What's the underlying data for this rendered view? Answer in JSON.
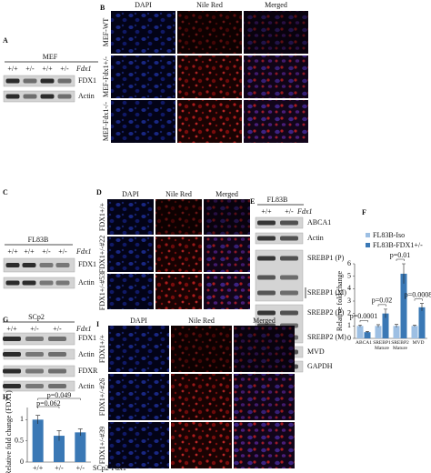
{
  "panels": {
    "A": {
      "label": "A",
      "cell_line": "MEF",
      "genotypes": [
        "+/+",
        "+/-",
        "+/+",
        "+/-"
      ],
      "gene": "Fdx1",
      "blots": [
        "FDX1",
        "Actin"
      ]
    },
    "B": {
      "label": "B",
      "columns": [
        "DAPI",
        "Nile Red",
        "Merged"
      ],
      "rows": [
        "MEF-WT",
        "MEF-Fdx1+/-",
        "MEF-Fdx1-/-"
      ]
    },
    "C": {
      "label": "C",
      "cell_line": "FL83B",
      "genotypes": [
        "+/+",
        "+/+",
        "+/-",
        "+/-"
      ],
      "gene": "Fdx1",
      "blots": [
        "FDX1",
        "Actin"
      ]
    },
    "D": {
      "label": "D",
      "columns": [
        "DAPI",
        "Nile Red",
        "Merged"
      ],
      "rows": [
        "FDX1+/+",
        "FDX1+/-#22",
        "FDX1+/-#53"
      ]
    },
    "E": {
      "label": "E",
      "cell_line": "FL83B",
      "genotypes": [
        "+/+",
        "+/-"
      ],
      "gene": "Fdx1",
      "blots": [
        "ABCA1",
        "Actin",
        "SREBP1 (P)",
        "SREBP1 (M)",
        "SREBP2 (P)",
        "SREBP2 (M)",
        "MVD",
        "GAPDH"
      ]
    },
    "F": {
      "label": "F"
    },
    "G": {
      "label": "G",
      "cell_line": "SCp2",
      "genotypes": [
        "+/+",
        "+/-",
        "+/-"
      ],
      "gene": "Fdx1",
      "blots": [
        "FDX1",
        "Actin",
        "FDXR",
        "Actin"
      ]
    },
    "H": {
      "label": "H"
    },
    "I": {
      "label": "I",
      "columns": [
        "DAPI",
        "Nile Red",
        "Merged"
      ],
      "rows": [
        "FDX1+/+",
        "FDX1+/-#26",
        "FDX1+/-#39"
      ]
    }
  },
  "chart_data": [
    {
      "type": "bar",
      "ylabel": "Relative fold change",
      "categories": [
        "ABCA1",
        "SREBP1 Mature",
        "SREBP2 Mature",
        "MVD"
      ],
      "series": [
        {
          "name": "FL83B-Iso",
          "color": "#9dbfe3",
          "values": [
            1,
            1,
            1,
            1
          ],
          "errors": [
            0.08,
            0.1,
            0.12,
            0.06
          ]
        },
        {
          "name": "FL83B-FDX1+/-",
          "color": "#3a78b5",
          "values": [
            0.5,
            2,
            5.2,
            2.5
          ],
          "errors": [
            0.06,
            0.35,
            0.8,
            0.3
          ]
        }
      ],
      "p_values": [
        "p=0.0001",
        "p=0.02",
        "p=0.01",
        "p=0.0008"
      ],
      "ylim": [
        0,
        6
      ],
      "yticks": [
        0,
        1,
        2,
        3,
        4,
        5,
        6
      ],
      "legend": "top-left"
    },
    {
      "type": "bar",
      "ylabel": "Relative fold change (FDX1)",
      "xlabel": "SCp2-Fdx1",
      "categories": [
        "+/+",
        "+/-",
        "+/-"
      ],
      "values": [
        1,
        0.62,
        0.7
      ],
      "errors": [
        0.1,
        0.12,
        0.08
      ],
      "color": "#3a78b5",
      "comparisons": [
        "p=0.062",
        "p=0.049"
      ],
      "ylim": [
        0,
        1.2
      ],
      "yticks": [
        0,
        0.5,
        1
      ]
    }
  ]
}
